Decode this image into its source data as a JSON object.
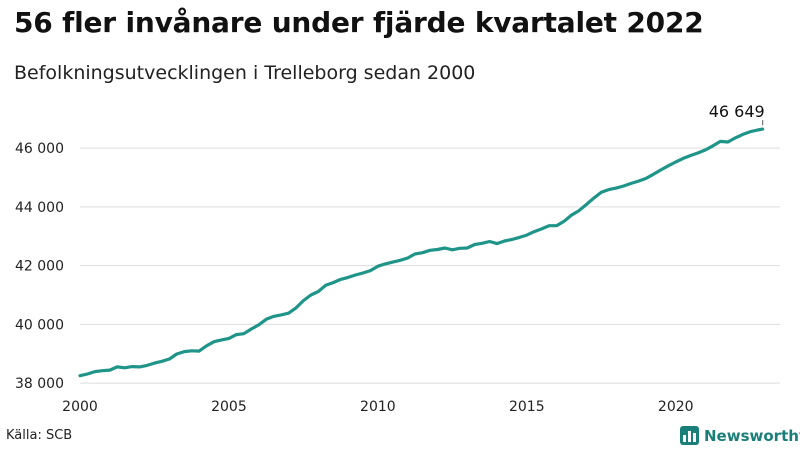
{
  "header": {
    "title": "56 fler invånare under fjärde kvartalet 2022",
    "subtitle": "Befolkningsutvecklingen i Trelleborg sedan 2000"
  },
  "footer": {
    "source": "Källa: SCB",
    "brand": "Newsworthy",
    "brand_icon": "newsworthy-logo-icon"
  },
  "colors": {
    "line": "#1f9488",
    "grid": "#dddddd",
    "brand": "#1b7f79"
  },
  "chart_data": {
    "type": "line",
    "title": "56 fler invånare under fjärde kvartalet 2022",
    "subtitle": "Befolkningsutvecklingen i Trelleborg sedan 2000",
    "xlabel": "",
    "ylabel": "",
    "xlim": [
      2000,
      2023.5
    ],
    "ylim": [
      37900,
      47300
    ],
    "grid": true,
    "x_ticks": [
      2000,
      2005,
      2010,
      2015,
      2020
    ],
    "x_tick_labels": [
      "2000",
      "2005",
      "2010",
      "2015",
      "2020"
    ],
    "y_ticks": [
      38000,
      40000,
      42000,
      44000,
      46000
    ],
    "y_tick_labels": [
      "38 000",
      "40 000",
      "42 000",
      "44 000",
      "46 000"
    ],
    "annotation": {
      "label": "46 649",
      "x": 2022.92,
      "y": 46649
    },
    "series": [
      {
        "x": [
          2000.0,
          2000.25,
          2000.5,
          2000.75,
          2001.0,
          2001.25,
          2001.5,
          2001.75,
          2002.0,
          2002.25,
          2002.5,
          2002.75,
          2003.0,
          2003.25,
          2003.5,
          2003.75,
          2004.0,
          2004.25,
          2004.5,
          2004.75,
          2005.0,
          2005.25,
          2005.5,
          2005.75,
          2006.0,
          2006.25,
          2006.5,
          2006.75,
          2007.0,
          2007.25,
          2007.5,
          2007.75,
          2008.0,
          2008.25,
          2008.5,
          2008.75,
          2009.0,
          2009.25,
          2009.5,
          2009.75,
          2010.0,
          2010.25,
          2010.5,
          2010.75,
          2011.0,
          2011.25,
          2011.5,
          2011.75,
          2012.0,
          2012.25,
          2012.5,
          2012.75,
          2013.0,
          2013.25,
          2013.5,
          2013.75,
          2014.0,
          2014.25,
          2014.5,
          2014.75,
          2015.0,
          2015.25,
          2015.5,
          2015.75,
          2016.0,
          2016.25,
          2016.5,
          2016.75,
          2017.0,
          2017.25,
          2017.5,
          2017.75,
          2018.0,
          2018.25,
          2018.5,
          2018.75,
          2019.0,
          2019.25,
          2019.5,
          2019.75,
          2020.0,
          2020.25,
          2020.5,
          2020.75,
          2021.0,
          2021.25,
          2021.5,
          2021.75,
          2022.0,
          2022.25,
          2022.5,
          2022.75,
          2022.92
        ],
        "y": [
          38250,
          38310,
          38390,
          38420,
          38440,
          38550,
          38520,
          38560,
          38550,
          38600,
          38680,
          38740,
          38820,
          38990,
          39070,
          39100,
          39090,
          39270,
          39410,
          39470,
          39520,
          39650,
          39680,
          39840,
          39980,
          40170,
          40270,
          40320,
          40380,
          40560,
          40810,
          41000,
          41120,
          41330,
          41420,
          41530,
          41600,
          41680,
          41750,
          41830,
          41980,
          42060,
          42120,
          42180,
          42260,
          42400,
          42440,
          42520,
          42550,
          42600,
          42540,
          42590,
          42600,
          42720,
          42760,
          42820,
          42750,
          42840,
          42890,
          42960,
          43040,
          43160,
          43250,
          43360,
          43360,
          43510,
          43720,
          43870,
          44080,
          44300,
          44500,
          44590,
          44640,
          44710,
          44800,
          44880,
          44970,
          45110,
          45260,
          45400,
          45530,
          45650,
          45750,
          45840,
          45940,
          46080,
          46230,
          46210,
          46350,
          46470,
          46560,
          46620,
          46649
        ]
      }
    ]
  }
}
